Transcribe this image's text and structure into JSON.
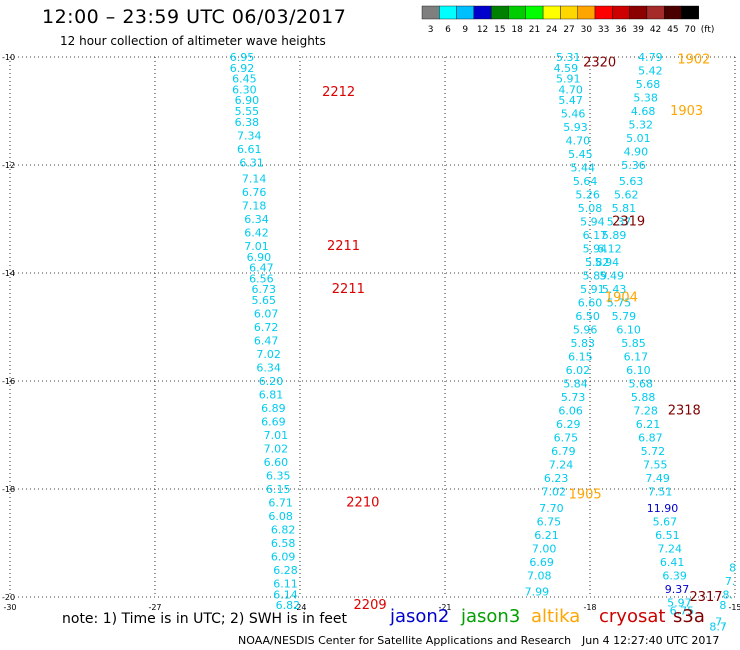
{
  "title": "12:00 – 23:59 UTC 06/03/2017",
  "subtitle": "12 hour collection of altimeter wave heights",
  "legend": {
    "bins": [
      "3",
      "6",
      "9",
      "12",
      "15",
      "18",
      "21",
      "24",
      "27",
      "30",
      "33",
      "36",
      "39",
      "42",
      "45",
      "70"
    ],
    "unit": "(ft)",
    "colors": [
      "#7f7f7f",
      "#00ffff",
      "#00bfff",
      "#0000cd",
      "#008000",
      "#00cd00",
      "#00ff00",
      "#ffff00",
      "#ffd700",
      "#ffa500",
      "#ff0000",
      "#cd0000",
      "#8b0000",
      "#a52a2a",
      "#4b0000",
      "#000000"
    ]
  },
  "note": "note:  1) Time is in UTC;  2) SWH is in feet",
  "satellites": [
    {
      "name": "jason2",
      "color": "#0000cd"
    },
    {
      "name": "jason3",
      "color": "#00a000"
    },
    {
      "name": "altika",
      "color": "#ffa500"
    },
    {
      "name": "cryosat",
      "color": "#cd0000"
    },
    {
      "name": "s3a",
      "color": "#7f0000"
    }
  ],
  "credit": "NOAA/NESDIS Center for Satellite Applications and Research",
  "timestamp": "Jun  4 12:27:40 UTC 2017",
  "chart_data": {
    "type": "scatter",
    "xlim": [
      -30,
      -15
    ],
    "ylim": [
      -20,
      -10
    ],
    "x_ticks": [
      "-30",
      "-27",
      "-24",
      "-21",
      "-18",
      "-15"
    ],
    "y_ticks": [
      "-10",
      "-12",
      "-14",
      "-16",
      "-18",
      "-20"
    ],
    "grid": true,
    "tracks": [
      {
        "id": "west",
        "points": [
          {
            "lon": -25.2,
            "lat": -10.0,
            "v": "6.95"
          },
          {
            "lon": -25.2,
            "lat": -10.2,
            "v": "6.92"
          },
          {
            "lon": -25.15,
            "lat": -10.4,
            "v": "6.45"
          },
          {
            "lon": -25.15,
            "lat": -10.6,
            "v": "6.30"
          },
          {
            "lon": -25.1,
            "lat": -10.8,
            "v": "6.90"
          },
          {
            "lon": -25.1,
            "lat": -11.0,
            "v": "5.55"
          },
          {
            "lon": -25.1,
            "lat": -11.2,
            "v": "6.38"
          },
          {
            "lon": -25.05,
            "lat": -11.45,
            "v": "7.34"
          },
          {
            "lon": -25.05,
            "lat": -11.7,
            "v": "6.61"
          },
          {
            "lon": -25.0,
            "lat": -11.95,
            "v": "6.31"
          },
          {
            "lon": -24.95,
            "lat": -12.25,
            "v": "7.14"
          },
          {
            "lon": -24.95,
            "lat": -12.5,
            "v": "6.76"
          },
          {
            "lon": -24.95,
            "lat": -12.75,
            "v": "7.18"
          },
          {
            "lon": -24.9,
            "lat": -13.0,
            "v": "6.34"
          },
          {
            "lon": -24.9,
            "lat": -13.25,
            "v": "6.42"
          },
          {
            "lon": -24.9,
            "lat": -13.5,
            "v": "7.01"
          },
          {
            "lon": -24.85,
            "lat": -13.7,
            "v": "6.90"
          },
          {
            "lon": -24.8,
            "lat": -13.9,
            "v": "6.47"
          },
          {
            "lon": -24.8,
            "lat": -14.1,
            "v": "6.56"
          },
          {
            "lon": -24.75,
            "lat": -14.3,
            "v": "6.73"
          },
          {
            "lon": -24.75,
            "lat": -14.5,
            "v": "5.65"
          },
          {
            "lon": -24.7,
            "lat": -14.75,
            "v": "6.07"
          },
          {
            "lon": -24.7,
            "lat": -15.0,
            "v": "6.72"
          },
          {
            "lon": -24.7,
            "lat": -15.25,
            "v": "6.47"
          },
          {
            "lon": -24.65,
            "lat": -15.5,
            "v": "7.02"
          },
          {
            "lon": -24.65,
            "lat": -15.75,
            "v": "6.34"
          },
          {
            "lon": -24.6,
            "lat": -16.0,
            "v": "6.20"
          },
          {
            "lon": -24.6,
            "lat": -16.25,
            "v": "6.81"
          },
          {
            "lon": -24.55,
            "lat": -16.5,
            "v": "6.89"
          },
          {
            "lon": -24.55,
            "lat": -16.75,
            "v": "6.69"
          },
          {
            "lon": -24.5,
            "lat": -17.0,
            "v": "7.01"
          },
          {
            "lon": -24.5,
            "lat": -17.25,
            "v": "7.02"
          },
          {
            "lon": -24.5,
            "lat": -17.5,
            "v": "6.60"
          },
          {
            "lon": -24.45,
            "lat": -17.75,
            "v": "6.35"
          },
          {
            "lon": -24.45,
            "lat": -18.0,
            "v": "6.15"
          },
          {
            "lon": -24.4,
            "lat": -18.25,
            "v": "6.71"
          },
          {
            "lon": -24.4,
            "lat": -18.5,
            "v": "6.08"
          },
          {
            "lon": -24.35,
            "lat": -18.75,
            "v": "6.82"
          },
          {
            "lon": -24.35,
            "lat": -19.0,
            "v": "6.58"
          },
          {
            "lon": -24.35,
            "lat": -19.25,
            "v": "6.09"
          },
          {
            "lon": -24.3,
            "lat": -19.5,
            "v": "6.28"
          },
          {
            "lon": -24.3,
            "lat": -19.75,
            "v": "6.11"
          },
          {
            "lon": -24.3,
            "lat": -19.95,
            "v": "6.14"
          },
          {
            "lon": -24.25,
            "lat": -20.15,
            "v": "6.82"
          }
        ]
      },
      {
        "id": "middle",
        "points": [
          {
            "lon": -18.45,
            "lat": -10.0,
            "v": "5.31"
          },
          {
            "lon": -18.5,
            "lat": -10.2,
            "v": "4.59"
          },
          {
            "lon": -18.45,
            "lat": -10.4,
            "v": "5.91"
          },
          {
            "lon": -18.4,
            "lat": -10.6,
            "v": "4.70"
          },
          {
            "lon": -18.4,
            "lat": -10.8,
            "v": "5.47"
          },
          {
            "lon": -18.35,
            "lat": -11.05,
            "v": "5.46"
          },
          {
            "lon": -18.3,
            "lat": -11.3,
            "v": "5.93"
          },
          {
            "lon": -18.25,
            "lat": -11.55,
            "v": "4.70"
          },
          {
            "lon": -18.2,
            "lat": -11.8,
            "v": "5.45"
          },
          {
            "lon": -18.15,
            "lat": -12.05,
            "v": "5.44"
          },
          {
            "lon": -18.1,
            "lat": -12.3,
            "v": "5.64"
          },
          {
            "lon": -18.05,
            "lat": -12.55,
            "v": "5.26"
          },
          {
            "lon": -18.0,
            "lat": -12.8,
            "v": "5.08"
          },
          {
            "lon": -17.95,
            "lat": -13.05,
            "v": "5.94"
          },
          {
            "lon": -17.9,
            "lat": -13.3,
            "v": "6.17"
          },
          {
            "lon": -17.9,
            "lat": -13.55,
            "v": "5.94"
          },
          {
            "lon": -17.85,
            "lat": -13.8,
            "v": "5.82"
          },
          {
            "lon": -17.9,
            "lat": -14.05,
            "v": "5.89"
          },
          {
            "lon": -17.95,
            "lat": -14.3,
            "v": "5.91"
          },
          {
            "lon": -18.0,
            "lat": -14.55,
            "v": "6.60"
          },
          {
            "lon": -18.05,
            "lat": -14.8,
            "v": "6.50"
          },
          {
            "lon": -18.1,
            "lat": -15.05,
            "v": "5.96"
          },
          {
            "lon": -18.15,
            "lat": -15.3,
            "v": "5.83"
          },
          {
            "lon": -18.2,
            "lat": -15.55,
            "v": "6.15"
          },
          {
            "lon": -18.25,
            "lat": -15.8,
            "v": "6.02"
          },
          {
            "lon": -18.3,
            "lat": -16.05,
            "v": "5.84"
          },
          {
            "lon": -18.35,
            "lat": -16.3,
            "v": "5.73"
          },
          {
            "lon": -18.4,
            "lat": -16.55,
            "v": "6.06"
          },
          {
            "lon": -18.45,
            "lat": -16.8,
            "v": "6.29"
          },
          {
            "lon": -18.5,
            "lat": -17.05,
            "v": "6.75"
          },
          {
            "lon": -18.55,
            "lat": -17.3,
            "v": "6.79"
          },
          {
            "lon": -18.6,
            "lat": -17.55,
            "v": "7.24"
          },
          {
            "lon": -18.7,
            "lat": -17.8,
            "v": "6.23"
          },
          {
            "lon": -18.75,
            "lat": -18.05,
            "v": "7.02"
          },
          {
            "lon": -18.8,
            "lat": -18.35,
            "v": "7.70"
          },
          {
            "lon": -18.85,
            "lat": -18.6,
            "v": "6.75"
          },
          {
            "lon": -18.9,
            "lat": -18.85,
            "v": "6.21"
          },
          {
            "lon": -18.95,
            "lat": -19.1,
            "v": "7.00"
          },
          {
            "lon": -19.0,
            "lat": -19.35,
            "v": "6.69"
          },
          {
            "lon": -19.05,
            "lat": -19.6,
            "v": "7.08"
          },
          {
            "lon": -19.1,
            "lat": -19.9,
            "v": "7.99"
          }
        ]
      },
      {
        "id": "east",
        "points": [
          {
            "lon": -16.75,
            "lat": -10.0,
            "v": "4.79"
          },
          {
            "lon": -16.75,
            "lat": -10.25,
            "v": "5.42"
          },
          {
            "lon": -16.8,
            "lat": -10.5,
            "v": "5.68"
          },
          {
            "lon": -16.85,
            "lat": -10.75,
            "v": "5.38"
          },
          {
            "lon": -16.9,
            "lat": -11.0,
            "v": "4.68"
          },
          {
            "lon": -16.95,
            "lat": -11.25,
            "v": "5.32"
          },
          {
            "lon": -17.0,
            "lat": -11.5,
            "v": "5.01"
          },
          {
            "lon": -17.05,
            "lat": -11.75,
            "v": "4.90"
          },
          {
            "lon": -17.1,
            "lat": -12.0,
            "v": "5.36"
          },
          {
            "lon": -17.15,
            "lat": -12.3,
            "v": "5.63"
          },
          {
            "lon": -17.25,
            "lat": -12.55,
            "v": "5.62"
          },
          {
            "lon": -17.3,
            "lat": -12.8,
            "v": "5.81"
          },
          {
            "lon": -17.4,
            "lat": -13.05,
            "v": "5.37"
          },
          {
            "lon": -17.5,
            "lat": -13.3,
            "v": "5.89"
          },
          {
            "lon": -17.6,
            "lat": -13.55,
            "v": "6.12"
          },
          {
            "lon": -17.65,
            "lat": -13.8,
            "v": "5.94"
          },
          {
            "lon": -17.55,
            "lat": -14.05,
            "v": "5.49"
          },
          {
            "lon": -17.5,
            "lat": -14.3,
            "v": "5.43"
          },
          {
            "lon": -17.4,
            "lat": -14.55,
            "v": "5.75"
          },
          {
            "lon": -17.3,
            "lat": -14.8,
            "v": "5.79"
          },
          {
            "lon": -17.2,
            "lat": -15.05,
            "v": "6.10"
          },
          {
            "lon": -17.1,
            "lat": -15.3,
            "v": "5.85"
          },
          {
            "lon": -17.05,
            "lat": -15.55,
            "v": "6.17"
          },
          {
            "lon": -17.0,
            "lat": -15.8,
            "v": "6.10"
          },
          {
            "lon": -16.95,
            "lat": -16.05,
            "v": "5.68"
          },
          {
            "lon": -16.9,
            "lat": -16.3,
            "v": "5.88"
          },
          {
            "lon": -16.85,
            "lat": -16.55,
            "v": "7.28"
          },
          {
            "lon": -16.8,
            "lat": -16.8,
            "v": "6.21"
          },
          {
            "lon": -16.75,
            "lat": -17.05,
            "v": "6.87"
          },
          {
            "lon": -16.7,
            "lat": -17.3,
            "v": "5.72"
          },
          {
            "lon": -16.65,
            "lat": -17.55,
            "v": "7.55"
          },
          {
            "lon": -16.6,
            "lat": -17.8,
            "v": "7.49"
          },
          {
            "lon": -16.55,
            "lat": -18.05,
            "v": "7.51"
          },
          {
            "lon": -16.5,
            "lat": -18.35,
            "v": "11.90"
          },
          {
            "lon": -16.45,
            "lat": -18.6,
            "v": "5.67"
          },
          {
            "lon": -16.4,
            "lat": -18.85,
            "v": "6.51"
          },
          {
            "lon": -16.35,
            "lat": -19.1,
            "v": "7.24"
          },
          {
            "lon": -16.3,
            "lat": -19.35,
            "v": "6.41"
          },
          {
            "lon": -16.25,
            "lat": -19.6,
            "v": "6.39"
          },
          {
            "lon": -16.2,
            "lat": -19.85,
            "v": "9.37"
          },
          {
            "lon": -16.15,
            "lat": -20.1,
            "v": "5.97"
          },
          {
            "lon": -16.1,
            "lat": -20.25,
            "v": "6.75"
          }
        ]
      },
      {
        "id": "edge",
        "points": [
          {
            "lon": -15.05,
            "lat": -19.45,
            "v": "8"
          },
          {
            "lon": -15.1,
            "lat": -19.7,
            "v": "7."
          },
          {
            "lon": -15.15,
            "lat": -19.95,
            "v": "8."
          },
          {
            "lon": -15.25,
            "lat": -20.15,
            "v": "8"
          },
          {
            "lon": -15.3,
            "lat": -20.45,
            "v": "7."
          },
          {
            "lon": -15.35,
            "lat": -20.55,
            "v": "8.7"
          }
        ]
      }
    ],
    "pass_labels": [
      {
        "lon": -23.2,
        "lat": -10.65,
        "label": "2212",
        "color": "#dd0000"
      },
      {
        "lon": -23.1,
        "lat": -13.5,
        "label": "2211",
        "color": "#dd0000"
      },
      {
        "lon": -23.0,
        "lat": -14.3,
        "label": "2211",
        "color": "#dd0000"
      },
      {
        "lon": -22.7,
        "lat": -18.25,
        "label": "2210",
        "color": "#dd0000"
      },
      {
        "lon": -22.55,
        "lat": -20.15,
        "label": "2209",
        "color": "#dd0000"
      },
      {
        "lon": -17.8,
        "lat": -10.1,
        "label": "2320",
        "color": "#7f0000"
      },
      {
        "lon": -15.85,
        "lat": -10.05,
        "label": "1902",
        "color": "#ffa500"
      },
      {
        "lon": -16.0,
        "lat": -11.0,
        "label": "1903",
        "color": "#ffa500"
      },
      {
        "lon": -17.2,
        "lat": -13.05,
        "label": "2319",
        "color": "#7f0000"
      },
      {
        "lon": -17.35,
        "lat": -14.45,
        "label": "1904",
        "color": "#ffa500"
      },
      {
        "lon": -16.05,
        "lat": -16.55,
        "label": "2318",
        "color": "#7f0000"
      },
      {
        "lon": -18.1,
        "lat": -18.1,
        "label": "1905",
        "color": "#ffa500"
      },
      {
        "lon": -15.6,
        "lat": -20.0,
        "label": "2317",
        "color": "#7f0000"
      }
    ]
  }
}
